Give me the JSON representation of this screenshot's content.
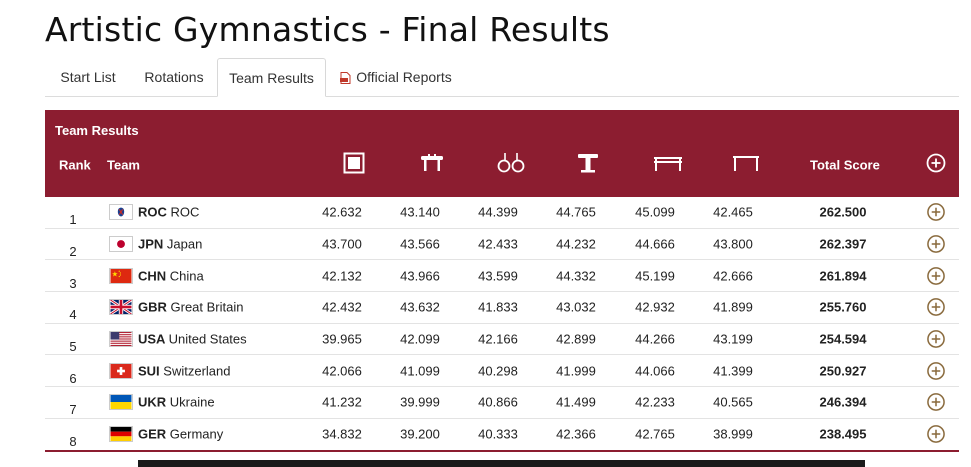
{
  "page": {
    "title": "Artistic Gymnastics - Final Results"
  },
  "tabs": [
    {
      "label": "Start List"
    },
    {
      "label": "Rotations"
    },
    {
      "label": "Team Results",
      "active": true
    },
    {
      "label": "Official Reports",
      "icon": "pdf-icon"
    }
  ],
  "table": {
    "title": "Team Results",
    "headers": {
      "rank": "Rank",
      "team": "Team",
      "apparatus": [
        "floor-exercise-icon",
        "pommel-horse-icon",
        "rings-icon",
        "vault-icon",
        "parallel-bars-icon",
        "horizontal-bar-icon"
      ],
      "total": "Total Score",
      "expand": "plus-circle-icon"
    },
    "colors": {
      "header_bg": "#8c1d30",
      "header_text": "#ffffff",
      "expand_icon": "#8a6b3e"
    },
    "rows": [
      {
        "rank": "1",
        "code": "ROC",
        "name": "ROC",
        "flag": "roc",
        "scores": [
          "42.632",
          "43.140",
          "44.399",
          "44.765",
          "45.099",
          "42.465"
        ],
        "total": "262.500"
      },
      {
        "rank": "2",
        "code": "JPN",
        "name": "Japan",
        "flag": "jpn",
        "scores": [
          "43.700",
          "43.566",
          "42.433",
          "44.232",
          "44.666",
          "43.800"
        ],
        "total": "262.397"
      },
      {
        "rank": "3",
        "code": "CHN",
        "name": "China",
        "flag": "chn",
        "scores": [
          "42.132",
          "43.966",
          "43.599",
          "44.332",
          "45.199",
          "42.666"
        ],
        "total": "261.894"
      },
      {
        "rank": "4",
        "code": "GBR",
        "name": "Great Britain",
        "flag": "gbr",
        "scores": [
          "42.432",
          "43.632",
          "41.833",
          "43.032",
          "42.932",
          "41.899"
        ],
        "total": "255.760"
      },
      {
        "rank": "5",
        "code": "USA",
        "name": "United States",
        "flag": "usa",
        "scores": [
          "39.965",
          "42.099",
          "42.166",
          "42.899",
          "44.266",
          "43.199"
        ],
        "total": "254.594"
      },
      {
        "rank": "6",
        "code": "SUI",
        "name": "Switzerland",
        "flag": "sui",
        "scores": [
          "42.066",
          "41.099",
          "40.298",
          "41.999",
          "44.066",
          "41.399"
        ],
        "total": "250.927"
      },
      {
        "rank": "7",
        "code": "UKR",
        "name": "Ukraine",
        "flag": "ukr",
        "scores": [
          "41.232",
          "39.999",
          "40.866",
          "41.499",
          "42.233",
          "40.565"
        ],
        "total": "246.394"
      },
      {
        "rank": "8",
        "code": "GER",
        "name": "Germany",
        "flag": "ger",
        "scores": [
          "34.832",
          "39.200",
          "40.333",
          "42.366",
          "42.765",
          "38.999"
        ],
        "total": "238.495"
      }
    ]
  }
}
